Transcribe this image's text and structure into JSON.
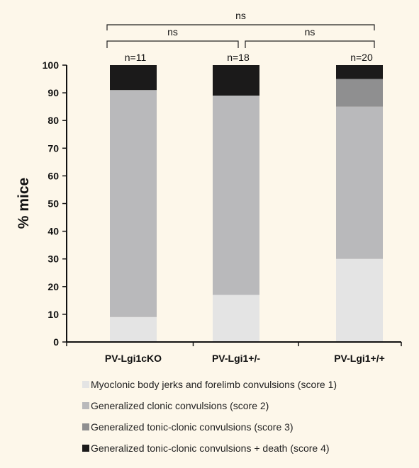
{
  "chart_data": {
    "type": "bar",
    "stacked": true,
    "categories": [
      "PV-Lgi1cKO",
      "PV-Lgi1+/-",
      "PV-Lgi1+/+"
    ],
    "n_labels": [
      "n=11",
      "n=18",
      "n=20"
    ],
    "series": [
      {
        "name": "Myoclonic body jerks and forelimb convulsions (score 1)",
        "values": [
          9,
          17,
          30
        ],
        "color": "#e4e4e4"
      },
      {
        "name": "Generalized clonic convulsions (score 2)",
        "values": [
          82,
          72,
          55
        ],
        "color": "#b9b9bb"
      },
      {
        "name": "Generalized tonic-clonic convulsions (score 3)",
        "values": [
          0,
          0,
          10
        ],
        "color": "#8f8f90"
      },
      {
        "name": "Generalized tonic-clonic convulsions + death (score 4)",
        "values": [
          9,
          11,
          5
        ],
        "color": "#1b1a1a"
      }
    ],
    "ylabel": "% mice",
    "ylim": [
      0,
      100
    ],
    "yticks": [
      0,
      10,
      20,
      30,
      40,
      50,
      60,
      70,
      80,
      90,
      100
    ],
    "grid": false,
    "legend": "bottom",
    "significance": [
      {
        "from": 0,
        "to": 1,
        "label": "ns"
      },
      {
        "from": 1,
        "to": 2,
        "label": "ns"
      },
      {
        "from": 0,
        "to": 2,
        "label": "ns"
      }
    ]
  }
}
